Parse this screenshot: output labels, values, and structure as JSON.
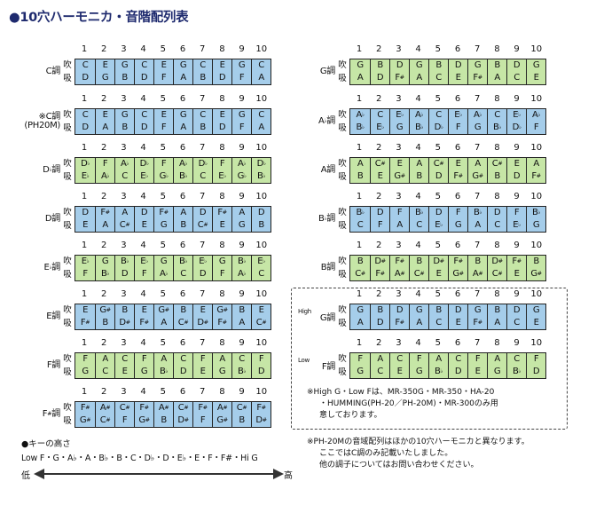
{
  "title": "●10穴ハーモニカ・音階配列表",
  "colors": {
    "blue": "#a5cdea",
    "green": "#c6e6a6",
    "title": "#1e2a6e"
  },
  "hole_numbers": [
    "1",
    "2",
    "3",
    "4",
    "5",
    "6",
    "7",
    "8",
    "9",
    "10"
  ],
  "blow_label": "吹",
  "draw_label": "吸",
  "left_column": [
    {
      "key": "C調",
      "color": "blue",
      "blow": [
        "C",
        "E",
        "G",
        "C",
        "E",
        "G",
        "C",
        "E",
        "G",
        "C"
      ],
      "draw": [
        "D",
        "G",
        "B",
        "D",
        "F",
        "A",
        "B",
        "D",
        "F",
        "A"
      ]
    },
    {
      "key": "※C調",
      "key2": "(PH20M)",
      "color": "blue",
      "blow": [
        "C",
        "E",
        "G",
        "C",
        "E",
        "G",
        "C",
        "E",
        "G",
        "C"
      ],
      "draw": [
        "D",
        "A",
        "B",
        "D",
        "F",
        "A",
        "B",
        "D",
        "F",
        "A"
      ]
    },
    {
      "key": "D♭調",
      "color": "green",
      "blow": [
        "D♭",
        "F",
        "A♭",
        "D♭",
        "F",
        "A♭",
        "D♭",
        "F",
        "A♭",
        "D♭"
      ],
      "draw": [
        "E♭",
        "A♭",
        "C",
        "E♭",
        "G♭",
        "B♭",
        "C",
        "E♭",
        "G♭",
        "B♭"
      ]
    },
    {
      "key": "D調",
      "color": "blue",
      "blow": [
        "D",
        "F#",
        "A",
        "D",
        "F#",
        "A",
        "D",
        "F#",
        "A",
        "D"
      ],
      "draw": [
        "E",
        "A",
        "C#",
        "E",
        "G",
        "B",
        "C#",
        "E",
        "G",
        "B"
      ]
    },
    {
      "key": "E♭調",
      "color": "green",
      "blow": [
        "E♭",
        "G",
        "B♭",
        "E♭",
        "G",
        "B♭",
        "E♭",
        "G",
        "B♭",
        "E♭"
      ],
      "draw": [
        "F",
        "B♭",
        "D",
        "F",
        "A♭",
        "C",
        "D",
        "F",
        "A♭",
        "C"
      ]
    },
    {
      "key": "E調",
      "color": "blue",
      "blow": [
        "E",
        "G#",
        "B",
        "E",
        "G#",
        "B",
        "E",
        "G#",
        "B",
        "E"
      ],
      "draw": [
        "F#",
        "B",
        "D#",
        "F#",
        "A",
        "C#",
        "D#",
        "F#",
        "A",
        "C#"
      ]
    },
    {
      "key": "F調",
      "color": "green",
      "blow": [
        "F",
        "A",
        "C",
        "F",
        "A",
        "C",
        "F",
        "A",
        "C",
        "F"
      ],
      "draw": [
        "G",
        "C",
        "E",
        "G",
        "B♭",
        "D",
        "E",
        "G",
        "B♭",
        "D"
      ]
    },
    {
      "key": "F#調",
      "color": "blue",
      "blow": [
        "F#",
        "A#",
        "C#",
        "F#",
        "A#",
        "C#",
        "F#",
        "A#",
        "C#",
        "F#"
      ],
      "draw": [
        "G#",
        "C#",
        "F",
        "G#",
        "B",
        "D#",
        "F",
        "G#",
        "B",
        "D#"
      ]
    }
  ],
  "right_column": [
    {
      "key": "G調",
      "color": "green",
      "blow": [
        "G",
        "B",
        "D",
        "G",
        "B",
        "D",
        "G",
        "B",
        "D",
        "G"
      ],
      "draw": [
        "A",
        "D",
        "F#",
        "A",
        "C",
        "E",
        "F#",
        "A",
        "C",
        "E"
      ]
    },
    {
      "key": "A♭調",
      "color": "blue",
      "blow": [
        "A♭",
        "C",
        "E♭",
        "A♭",
        "C",
        "E♭",
        "A♭",
        "C",
        "E♭",
        "A♭"
      ],
      "draw": [
        "B♭",
        "E♭",
        "G",
        "B♭",
        "D♭",
        "F",
        "G",
        "B♭",
        "D♭",
        "F"
      ]
    },
    {
      "key": "A調",
      "color": "green",
      "blow": [
        "A",
        "C#",
        "E",
        "A",
        "C#",
        "E",
        "A",
        "C#",
        "E",
        "A"
      ],
      "draw": [
        "B",
        "E",
        "G#",
        "B",
        "D",
        "F#",
        "G#",
        "B",
        "D",
        "F#"
      ]
    },
    {
      "key": "B♭調",
      "color": "blue",
      "blow": [
        "B♭",
        "D",
        "F",
        "B♭",
        "D",
        "F",
        "B♭",
        "D",
        "F",
        "B♭"
      ],
      "draw": [
        "C",
        "F",
        "A",
        "C",
        "E♭",
        "G",
        "A",
        "C",
        "E♭",
        "G"
      ]
    },
    {
      "key": "B調",
      "color": "green",
      "blow": [
        "B",
        "D#",
        "F#",
        "B",
        "D#",
        "F#",
        "B",
        "D#",
        "F#",
        "B"
      ],
      "draw": [
        "C#",
        "F#",
        "A#",
        "C#",
        "E",
        "G#",
        "A#",
        "C#",
        "E",
        "G#"
      ]
    },
    {
      "key": "G調",
      "prefix": "High",
      "color": "blue",
      "blow": [
        "G",
        "B",
        "D",
        "G",
        "B",
        "D",
        "G",
        "B",
        "D",
        "G"
      ],
      "draw": [
        "A",
        "D",
        "F#",
        "A",
        "C",
        "E",
        "F#",
        "A",
        "C",
        "E"
      ]
    },
    {
      "key": "F調",
      "prefix": "Low",
      "color": "green",
      "blow": [
        "F",
        "A",
        "C",
        "F",
        "A",
        "C",
        "F",
        "A",
        "C",
        "F"
      ],
      "draw": [
        "G",
        "C",
        "E",
        "G",
        "B♭",
        "D",
        "E",
        "G",
        "B♭",
        "D"
      ]
    }
  ],
  "notes": {
    "high_low_1": "※High G・Low Fは、MR-350G・MR-350・HA-20",
    "high_low_2": "・HUMMING(PH-20／PH-20M)・MR-300のみ用",
    "high_low_3": "意しております。",
    "ph20m_1": "※PH-20Mの音域配列はほかの10穴ハーモニカと異なります。",
    "ph20m_2": "ここではC調のみ記載いたしました。",
    "ph20m_3": "他の調子についてはお問い合わせください。"
  },
  "key_height": {
    "title": "●キーの高さ",
    "order": "Low F・G・A♭・A・B♭・B・C・D♭・D・E♭・E・F・F#・Hi G",
    "low": "低",
    "high": "高"
  }
}
